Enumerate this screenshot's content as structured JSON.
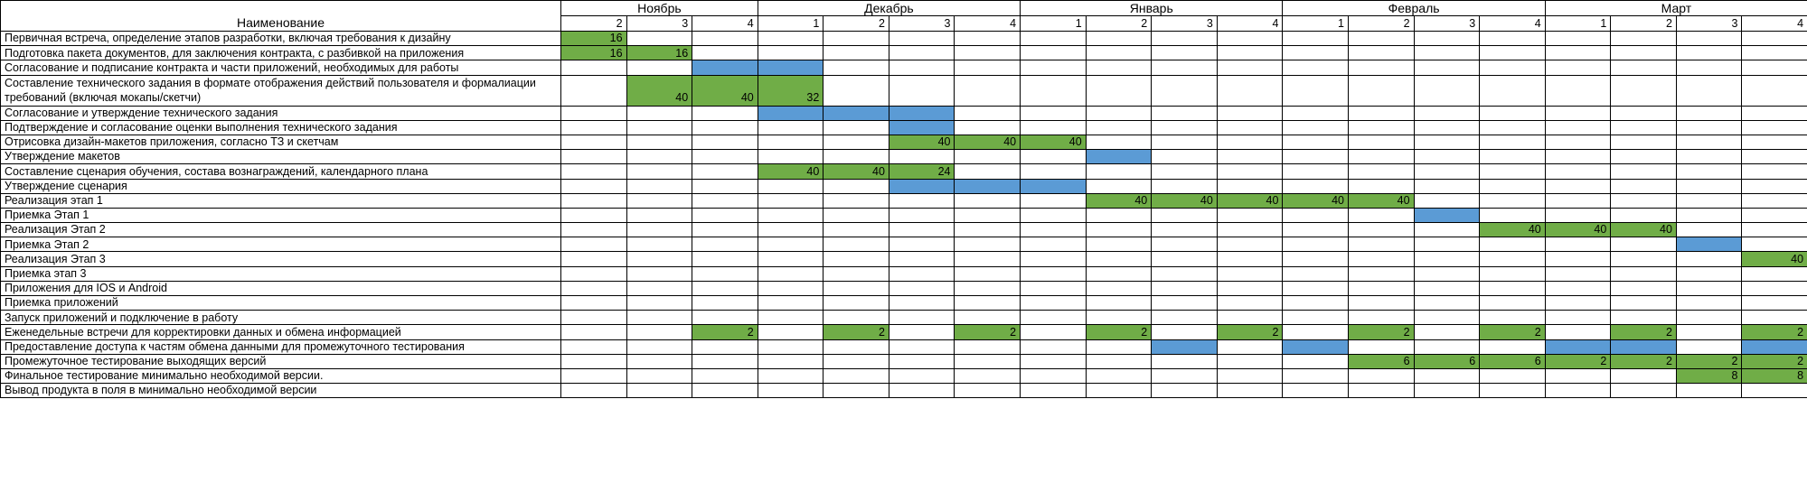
{
  "header": {
    "name_label": "Наименование",
    "months": [
      {
        "label": "Ноябрь",
        "span": 3
      },
      {
        "label": "Декабрь",
        "span": 4
      },
      {
        "label": "Январь",
        "span": 4
      },
      {
        "label": "Февраль",
        "span": 4
      },
      {
        "label": "Март",
        "span": 4
      }
    ],
    "weeks": [
      "2",
      "3",
      "4",
      "1",
      "2",
      "3",
      "4",
      "1",
      "2",
      "3",
      "4",
      "1",
      "2",
      "3",
      "4",
      "1",
      "2",
      "3",
      "4"
    ]
  },
  "colors": {
    "work": "#70ad47",
    "approval": "#5b9bd5"
  },
  "rows": [
    {
      "label": "Первичная встреча, определение этапов разработки, включая требования к дизайну",
      "cells": [
        {
          "c": 0,
          "t": "g",
          "v": "16"
        }
      ]
    },
    {
      "label": "Подготовка пакета документов, для заключения контракта, с разбивкой на приложения",
      "cells": [
        {
          "c": 0,
          "t": "g",
          "v": "16"
        },
        {
          "c": 1,
          "t": "g",
          "v": "16"
        }
      ]
    },
    {
      "label": "Согласование и подписание контракта и части приложений, необходимых для работы",
      "cells": [
        {
          "c": 2,
          "t": "b",
          "v": ""
        },
        {
          "c": 3,
          "t": "b",
          "v": ""
        }
      ]
    },
    {
      "label": "Составление технического задания в формате отображения действий пользователя и формалиации требований (включая мокапы/скетчи)",
      "tall": true,
      "cells": [
        {
          "c": 1,
          "t": "g",
          "v": "40"
        },
        {
          "c": 2,
          "t": "g",
          "v": "40"
        },
        {
          "c": 3,
          "t": "g",
          "v": "32"
        }
      ]
    },
    {
      "label": "Согласование и утверждение технического задания",
      "cells": [
        {
          "c": 3,
          "t": "b",
          "v": ""
        },
        {
          "c": 4,
          "t": "b",
          "v": ""
        },
        {
          "c": 5,
          "t": "b",
          "v": ""
        }
      ]
    },
    {
      "label": "Подтверждение и согласование оценки выполнения технического задания",
      "cells": [
        {
          "c": 5,
          "t": "b",
          "v": ""
        }
      ]
    },
    {
      "label": "Отрисовка дизайн-макетов приложения, согласно ТЗ и скетчам",
      "cells": [
        {
          "c": 5,
          "t": "g",
          "v": "40"
        },
        {
          "c": 6,
          "t": "g",
          "v": "40"
        },
        {
          "c": 7,
          "t": "g",
          "v": "40"
        }
      ]
    },
    {
      "label": "Утверждение макетов",
      "cells": [
        {
          "c": 8,
          "t": "b",
          "v": ""
        }
      ]
    },
    {
      "label": "Составление сценария обучения, состава вознаграждений, календарного плана",
      "cells": [
        {
          "c": 3,
          "t": "g",
          "v": "40"
        },
        {
          "c": 4,
          "t": "g",
          "v": "40"
        },
        {
          "c": 5,
          "t": "g",
          "v": "24"
        }
      ]
    },
    {
      "label": "Утверждение сценария",
      "cells": [
        {
          "c": 5,
          "t": "b",
          "v": ""
        },
        {
          "c": 6,
          "t": "b",
          "v": ""
        },
        {
          "c": 7,
          "t": "b",
          "v": ""
        }
      ]
    },
    {
      "label": "Реализация этап 1",
      "cells": [
        {
          "c": 8,
          "t": "g",
          "v": "40"
        },
        {
          "c": 9,
          "t": "g",
          "v": "40"
        },
        {
          "c": 10,
          "t": "g",
          "v": "40"
        },
        {
          "c": 11,
          "t": "g",
          "v": "40"
        },
        {
          "c": 12,
          "t": "g",
          "v": "40"
        }
      ]
    },
    {
      "label": "Приемка Этап 1",
      "cells": [
        {
          "c": 13,
          "t": "b",
          "v": ""
        }
      ]
    },
    {
      "label": "Реализация Этап 2",
      "cells": [
        {
          "c": 14,
          "t": "g",
          "v": "40"
        },
        {
          "c": 15,
          "t": "g",
          "v": "40"
        },
        {
          "c": 16,
          "t": "g",
          "v": "40"
        }
      ]
    },
    {
      "label": "Приемка Этап 2",
      "cells": [
        {
          "c": 17,
          "t": "b",
          "v": ""
        }
      ]
    },
    {
      "label": "Реализация Этап 3",
      "cells": [
        {
          "c": 18,
          "t": "g",
          "v": "40"
        }
      ]
    },
    {
      "label": "Приемка этап 3",
      "cells": []
    },
    {
      "label": "Приложения для IOS и Android",
      "cells": []
    },
    {
      "label": "Приемка приложений",
      "cells": []
    },
    {
      "label": "Запуск приложений и  подключение в работу",
      "cells": []
    },
    {
      "label": "Еженедельные встречи для корректировки данных и обмена информацией",
      "cells": [
        {
          "c": 2,
          "t": "g",
          "v": "2"
        },
        {
          "c": 4,
          "t": "g",
          "v": "2"
        },
        {
          "c": 6,
          "t": "g",
          "v": "2"
        },
        {
          "c": 8,
          "t": "g",
          "v": "2"
        },
        {
          "c": 10,
          "t": "g",
          "v": "2"
        },
        {
          "c": 12,
          "t": "g",
          "v": "2"
        },
        {
          "c": 14,
          "t": "g",
          "v": "2"
        },
        {
          "c": 16,
          "t": "g",
          "v": "2"
        },
        {
          "c": 18,
          "t": "g",
          "v": "2"
        }
      ]
    },
    {
      "label": "Предоставление доступа к частям обмена данными для промежуточного тестирования",
      "cells": [
        {
          "c": 9,
          "t": "b",
          "v": ""
        },
        {
          "c": 11,
          "t": "b",
          "v": ""
        },
        {
          "c": 15,
          "t": "b",
          "v": ""
        },
        {
          "c": 16,
          "t": "b",
          "v": ""
        },
        {
          "c": 18,
          "t": "b",
          "v": ""
        }
      ]
    },
    {
      "label": "Промежуточное тестирование выходящих версий",
      "cells": [
        {
          "c": 12,
          "t": "g",
          "v": "6"
        },
        {
          "c": 13,
          "t": "g",
          "v": "6"
        },
        {
          "c": 14,
          "t": "g",
          "v": "6"
        },
        {
          "c": 15,
          "t": "g",
          "v": "2"
        },
        {
          "c": 16,
          "t": "g",
          "v": "2"
        },
        {
          "c": 17,
          "t": "g",
          "v": "2"
        },
        {
          "c": 18,
          "t": "g",
          "v": "2"
        }
      ]
    },
    {
      "label": "Финальное тестирование минимально необходимой версии.",
      "cells": [
        {
          "c": 17,
          "t": "g",
          "v": "8"
        },
        {
          "c": 18,
          "t": "g",
          "v": "8"
        }
      ]
    },
    {
      "label": "Вывод продукта в поля в минимально необходимой версии",
      "cells": []
    }
  ]
}
